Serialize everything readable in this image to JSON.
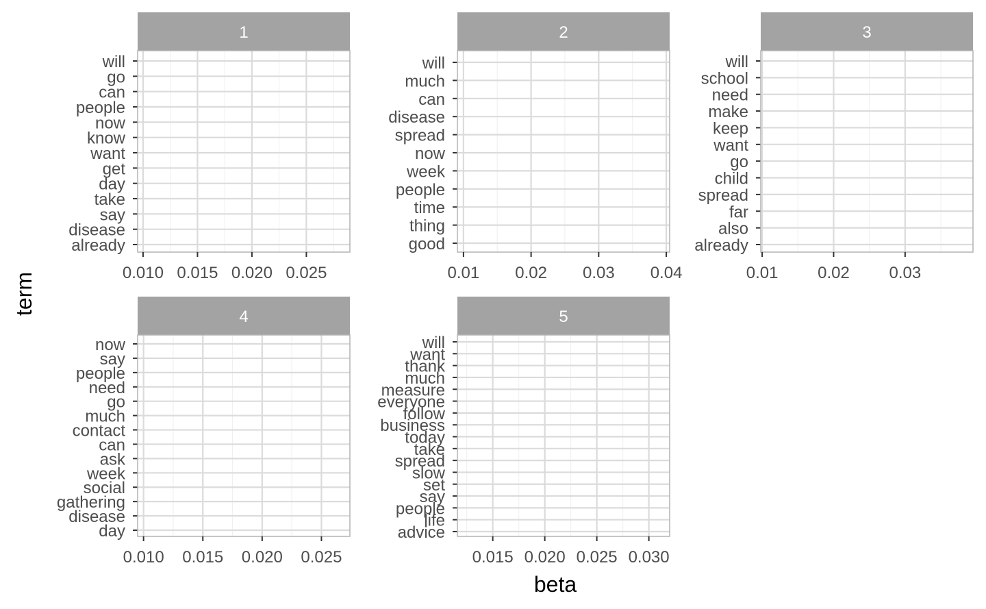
{
  "chart_data": {
    "type": "bar",
    "x_axis_title": "beta",
    "y_axis_title": "term",
    "facet_strip_color": "#a3a3a3",
    "panel_border_color": "#b3b3b3",
    "grid_major_color": "#dbdbdb",
    "grid_minor_color": "#f0f0f0",
    "facets": [
      {
        "label": "1",
        "terms": [
          "will",
          "go",
          "can",
          "people",
          "now",
          "know",
          "want",
          "get",
          "day",
          "take",
          "say",
          "disease",
          "already"
        ],
        "xlim": [
          0.0095,
          0.029
        ],
        "xticks": [
          0.01,
          0.015,
          0.02,
          0.025
        ],
        "xtick_labels": [
          "0.010",
          "0.015",
          "0.020",
          "0.025"
        ]
      },
      {
        "label": "2",
        "terms": [
          "will",
          "much",
          "can",
          "disease",
          "spread",
          "now",
          "week",
          "people",
          "time",
          "thing",
          "good"
        ],
        "xlim": [
          0.0091,
          0.0405
        ],
        "xticks": [
          0.01,
          0.02,
          0.03,
          0.04
        ],
        "xtick_labels": [
          "0.01",
          "0.02",
          "0.03",
          "0.04"
        ]
      },
      {
        "label": "3",
        "terms": [
          "will",
          "school",
          "need",
          "make",
          "keep",
          "want",
          "go",
          "child",
          "spread",
          "far",
          "also",
          "already"
        ],
        "xlim": [
          0.0098,
          0.0395
        ],
        "xticks": [
          0.01,
          0.02,
          0.03
        ],
        "xtick_labels": [
          "0.01",
          "0.02",
          "0.03"
        ]
      },
      {
        "label": "4",
        "terms": [
          "now",
          "say",
          "people",
          "need",
          "go",
          "much",
          "contact",
          "can",
          "ask",
          "week",
          "social",
          "gathering",
          "disease",
          "day"
        ],
        "xlim": [
          0.0095,
          0.0274
        ],
        "xticks": [
          0.01,
          0.015,
          0.02,
          0.025
        ],
        "xtick_labels": [
          "0.010",
          "0.015",
          "0.020",
          "0.025"
        ]
      },
      {
        "label": "5",
        "terms": [
          "will",
          "want",
          "thank",
          "much",
          "measure",
          "everyone",
          "follow",
          "business",
          "today",
          "take",
          "spread",
          "slow",
          "set",
          "say",
          "people",
          "life",
          "advice"
        ],
        "xlim": [
          0.0116,
          0.032
        ],
        "xticks": [
          0.015,
          0.02,
          0.025,
          0.03
        ],
        "xtick_labels": [
          "0.015",
          "0.020",
          "0.025",
          "0.030"
        ]
      }
    ]
  }
}
